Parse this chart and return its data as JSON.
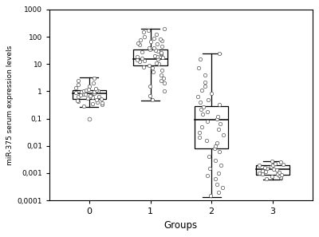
{
  "xlabel": "Groups",
  "ylabel": "miR-375 serum expression levels",
  "ylim_log": [
    0.0001,
    1000
  ],
  "yticks": [
    0.0001,
    0.001,
    0.01,
    0.1,
    1,
    10,
    100,
    1000
  ],
  "ytick_labels": [
    "0,0001",
    "0,001",
    "0,01",
    "0,1",
    "1",
    "10",
    "100",
    "1000"
  ],
  "groups": [
    0,
    1,
    2,
    3
  ],
  "group_labels": [
    "0",
    "1",
    "2",
    "3"
  ],
  "box_width": 0.55,
  "background_color": "white",
  "box_facecolor": "white",
  "box_edgecolor": "black",
  "whisker_color": "black",
  "median_color": "black",
  "scatter_color": "white",
  "scatter_edgecolor": "#555555",
  "scatter_size": 10,
  "scatter_linewidth": 0.5,
  "group0": {
    "q1": 0.52,
    "median": 0.82,
    "q2nd": 0.92,
    "q3": 1.1,
    "whisker_low": 0.27,
    "whisker_high": 3.2,
    "outliers_low": [
      0.1
    ],
    "scatter": [
      0.28,
      0.32,
      0.35,
      0.38,
      0.4,
      0.44,
      0.47,
      0.5,
      0.53,
      0.56,
      0.59,
      0.62,
      0.65,
      0.68,
      0.72,
      0.76,
      0.8,
      0.83,
      0.86,
      0.9,
      0.93,
      0.96,
      1.0,
      1.05,
      1.08,
      1.12,
      1.18,
      1.25,
      1.35,
      1.5,
      1.7,
      2.0,
      2.5,
      3.0
    ]
  },
  "group1": {
    "q1": 9.0,
    "median": 15.0,
    "q3": 35.0,
    "whisker_low": 0.45,
    "whisker_high": 200.0,
    "outliers_low": [],
    "scatter": [
      0.5,
      0.7,
      1.0,
      1.5,
      2.0,
      2.5,
      3.0,
      4.0,
      5.0,
      6.0,
      7.0,
      8.0,
      9.0,
      10.0,
      11.0,
      12.0,
      13.0,
      14.0,
      15.0,
      16.0,
      17.0,
      18.0,
      19.0,
      20.0,
      22.0,
      24.0,
      26.0,
      28.0,
      30.0,
      32.0,
      35.0,
      38.0,
      40.0,
      45.0,
      50.0,
      55.0,
      60.0,
      65.0,
      70.0,
      75.0,
      80.0,
      90.0,
      100.0,
      120.0,
      150.0,
      175.0,
      200.0
    ]
  },
  "group2": {
    "q1": 0.008,
    "median": 0.09,
    "q3": 0.28,
    "whisker_low": 0.00013,
    "whisker_high": 25.0,
    "outliers_low": [],
    "scatter": [
      0.00015,
      0.0002,
      0.0003,
      0.0004,
      0.0006,
      0.0008,
      0.001,
      0.0015,
      0.002,
      0.003,
      0.004,
      0.006,
      0.008,
      0.01,
      0.013,
      0.016,
      0.02,
      0.025,
      0.03,
      0.04,
      0.05,
      0.065,
      0.08,
      0.1,
      0.12,
      0.15,
      0.18,
      0.22,
      0.27,
      0.32,
      0.4,
      0.5,
      0.65,
      0.85,
      1.1,
      1.5,
      2.2,
      4.0,
      7.0,
      15.0,
      25.0
    ]
  },
  "group3": {
    "q1": 0.00085,
    "median": 0.0014,
    "q3": 0.002,
    "whisker_low": 0.00058,
    "whisker_high": 0.0028,
    "outliers_low": [],
    "scatter": [
      0.0006,
      0.00065,
      0.0007,
      0.00075,
      0.0008,
      0.00085,
      0.0009,
      0.00095,
      0.001,
      0.00105,
      0.0011,
      0.0012,
      0.0013,
      0.0014,
      0.0015,
      0.0016,
      0.00175,
      0.0019,
      0.002,
      0.00215,
      0.0023,
      0.0026,
      0.0028
    ]
  }
}
